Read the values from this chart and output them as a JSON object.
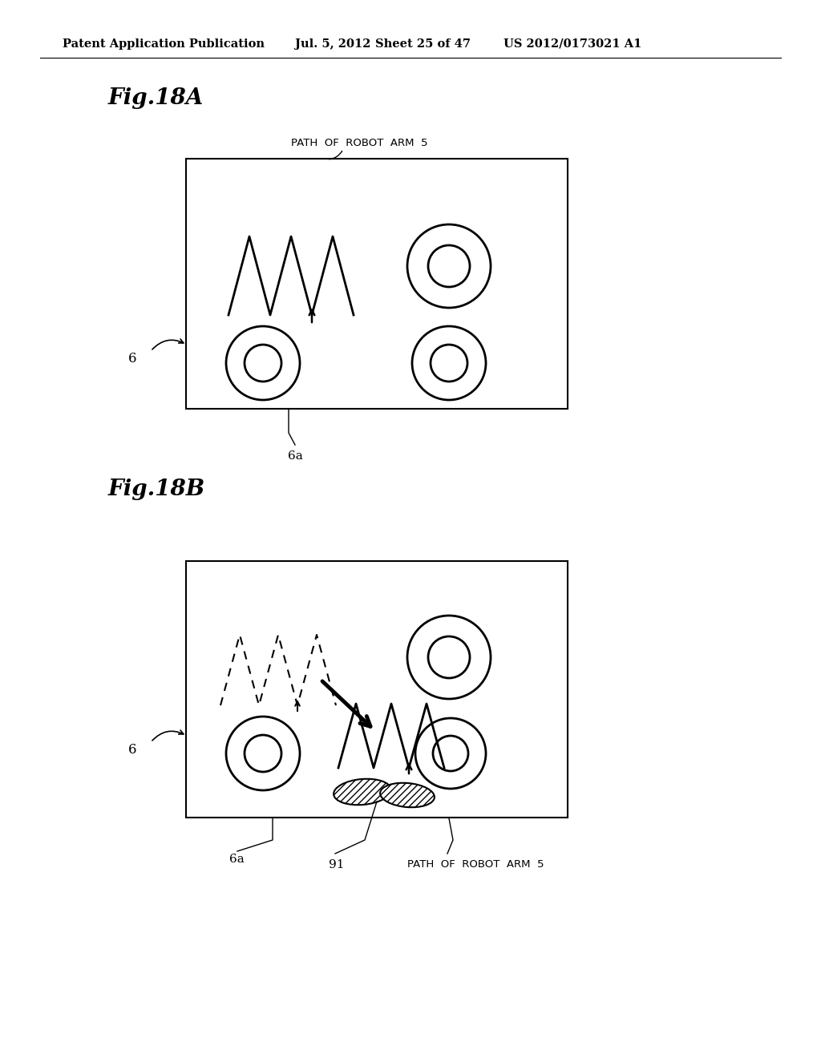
{
  "bg_color": "#ffffff",
  "header_text": "Patent Application Publication",
  "header_date": "Jul. 5, 2012",
  "header_sheet": "Sheet 25 of 47",
  "header_patent": "US 2012/0173021 A1",
  "fig_label_A": "Fig.18A",
  "fig_label_B": "Fig.18B",
  "label_6": "6",
  "label_6a": "6a",
  "label_91": "91",
  "label_path_A": "PATH  OF  ROBOT  ARM  5",
  "label_path_B": "PATH  OF  ROBOT  ARM  5"
}
